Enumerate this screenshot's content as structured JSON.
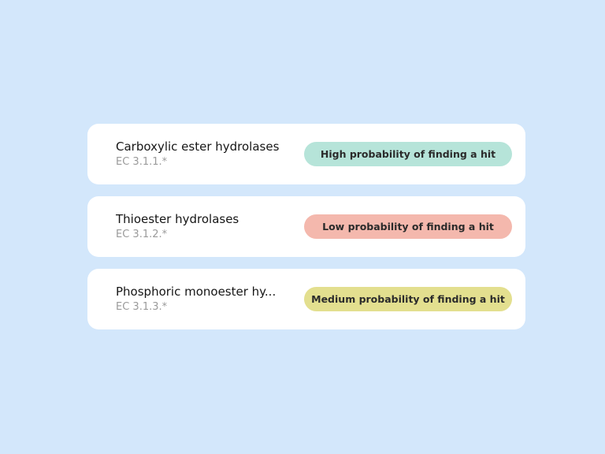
{
  "cards": [
    {
      "title": "Carboxylic ester hydrolases",
      "ec": "EC 3.1.1.*",
      "badge": "High probability of finding a hit",
      "badge_color": "#b6e4d9"
    },
    {
      "title": "Thioester hydrolases",
      "ec": "EC 3.1.2.*",
      "badge": "Low probability of finding a hit",
      "badge_color": "#f4b8ad"
    },
    {
      "title": "Phosphoric monoester hy...",
      "ec": "EC 3.1.3.*",
      "badge": "Medium probability of finding a hit",
      "badge_color": "#e3df8f"
    }
  ],
  "colors": {
    "background": "#d3e7fb",
    "card": "#ffffff"
  }
}
